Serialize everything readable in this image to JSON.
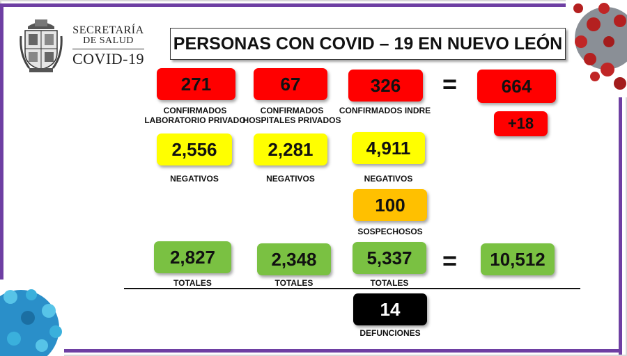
{
  "logo": {
    "line1": "SECRETARÍA",
    "line2": "DE SALUD",
    "line3": "COVID-19"
  },
  "title": "PERSONAS CON COVID – 19 EN NUEVO LEÓN",
  "columns": [
    {
      "confirmed": "271",
      "confirmed_label_1": "CONFIRMADOS",
      "confirmed_label_2": "LABORATORIO PRIVADO",
      "negatives": "2,556",
      "negatives_label": "NEGATIVOS",
      "totals": "2,827",
      "totals_label": "TOTALES"
    },
    {
      "confirmed": "67",
      "confirmed_label_1": "CONFIRMADOS",
      "confirmed_label_2": "HOSPITALES PRIVADOS",
      "negatives": "2,281",
      "negatives_label": "NEGATIVOS",
      "totals": "2,348",
      "totals_label": "TOTALES"
    },
    {
      "confirmed": "326",
      "confirmed_label_1": "CONFIRMADOS INDRE",
      "negatives": "4,911",
      "negatives_label": "NEGATIVOS",
      "suspects": "100",
      "suspects_label": "SOSPECHOSOS",
      "totals": "5,337",
      "totals_label": "TOTALES",
      "deaths": "14",
      "deaths_label": "DEFUNCIONES"
    }
  ],
  "summary": {
    "equals": "=",
    "total_confirmed": "664",
    "new_cases": "+18",
    "grand_total": "10,512"
  },
  "colors": {
    "confirmed": "#ff0000",
    "negatives": "#ffff00",
    "suspects": "#ffc000",
    "totals": "#7ac142",
    "deaths": "#000000",
    "frame": "#6e3fa3"
  }
}
